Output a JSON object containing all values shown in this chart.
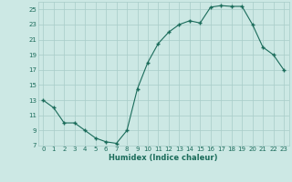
{
  "x": [
    0,
    1,
    2,
    3,
    4,
    5,
    6,
    7,
    8,
    9,
    10,
    11,
    12,
    13,
    14,
    15,
    16,
    17,
    18,
    19,
    20,
    21,
    22,
    23
  ],
  "y": [
    13,
    12,
    10,
    10,
    9,
    8,
    7.5,
    7.3,
    9,
    14.5,
    18,
    20.5,
    22,
    23,
    23.5,
    23.2,
    25.3,
    25.5,
    25.4,
    25.4,
    23,
    20,
    19,
    17
  ],
  "line_color": "#1a6b5a",
  "marker_color": "#1a6b5a",
  "bg_color": "#cce8e4",
  "grid_color": "#a8ccc8",
  "xlabel": "Humidex (Indice chaleur)",
  "xlim": [
    -0.5,
    23.5
  ],
  "ylim": [
    7,
    26
  ],
  "yticks": [
    7,
    9,
    11,
    13,
    15,
    17,
    19,
    21,
    23,
    25
  ],
  "xticks": [
    0,
    1,
    2,
    3,
    4,
    5,
    6,
    7,
    8,
    9,
    10,
    11,
    12,
    13,
    14,
    15,
    16,
    17,
    18,
    19,
    20,
    21,
    22,
    23
  ],
  "tick_fontsize": 5.0,
  "xlabel_fontsize": 6.0
}
